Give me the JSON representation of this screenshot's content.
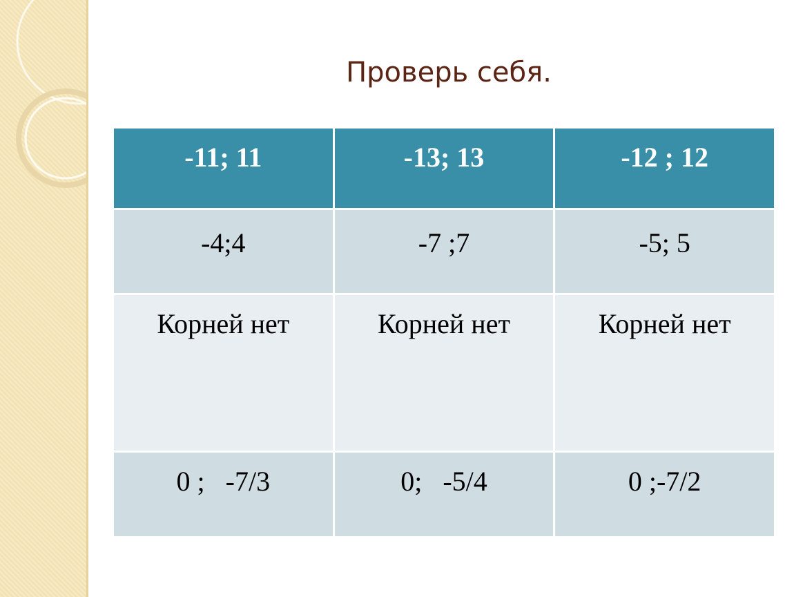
{
  "title": "Проверь себя.",
  "table": {
    "header": [
      "-11; 11",
      "-13; 13",
      "-12 ; 12"
    ],
    "rows": [
      [
        "-4;4",
        "-7 ;7",
        "-5; 5"
      ],
      [
        "Корней нет",
        "Корней нет",
        "Корней нет"
      ],
      [
        "0 ;   -7/3",
        "0;   -5/4",
        "0 ;-7/2"
      ]
    ]
  }
}
